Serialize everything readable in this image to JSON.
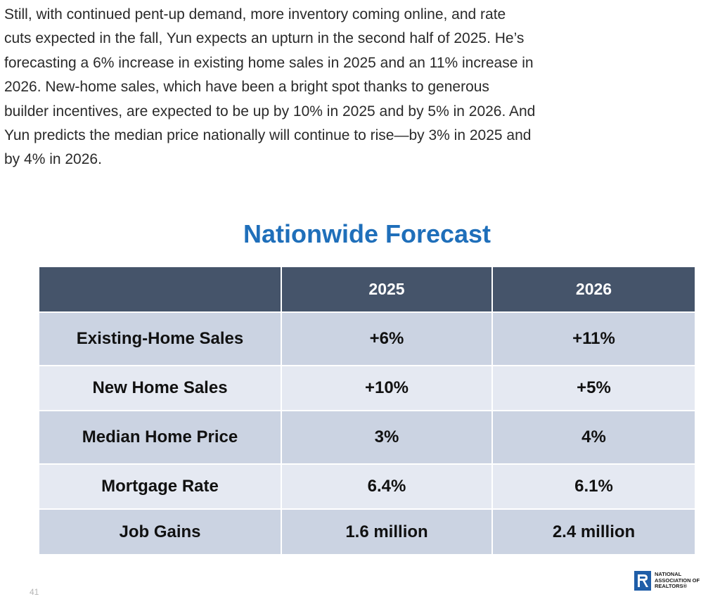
{
  "article": {
    "lines": [
      "Still, with continued pent-up demand, more inventory coming online, and rate",
      "cuts expected in the fall, Yun expects an upturn in the second half of 2025. He’s",
      "forecasting a 6% increase in existing home sales in 2025 and an 11% increase in",
      "2026. New-home sales, which have been a bright spot thanks to generous",
      "builder incentives, are expected to be up by 10% in 2025 and by 5% in 2026. And",
      "Yun predicts the median price nationally will continue to rise—by 3% in 2025 and",
      "by 4% in 2026."
    ]
  },
  "forecast": {
    "title": "Nationwide Forecast",
    "headers": [
      "",
      "2025",
      "2026"
    ],
    "rows": [
      [
        "Existing-Home Sales",
        "+6%",
        "+11%"
      ],
      [
        "New Home Sales",
        "+10%",
        "+5%"
      ],
      [
        "Median Home Price",
        "3%",
        "4%"
      ],
      [
        "Mortgage Rate",
        "6.4%",
        "6.1%"
      ],
      [
        "Job Gains",
        "1.6 million",
        "2.4 million"
      ]
    ]
  },
  "footer": {
    "page_number": "41",
    "logo_lines": [
      "NATIONAL",
      "ASSOCIATION OF",
      "REALTORS®"
    ]
  },
  "colors": {
    "title": "#1f6fba",
    "header_bg": "#45546a",
    "row_dark": "#cbd3e2",
    "row_light": "#e5e9f2",
    "logo_blue": "#1f5ea8"
  }
}
